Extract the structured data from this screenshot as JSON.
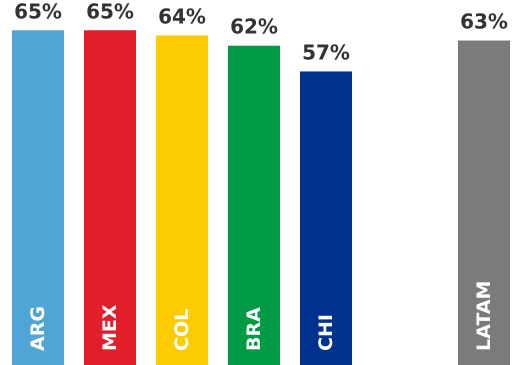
{
  "chart_data": {
    "type": "bar",
    "title": "",
    "xlabel": "",
    "ylabel": "",
    "ylim": [
      0,
      100
    ],
    "unit": "%",
    "categories": [
      "ARG",
      "MEX",
      "COL",
      "BRA",
      "CHI",
      "LATAM"
    ],
    "values": [
      65,
      65,
      64,
      62,
      57,
      63
    ],
    "value_labels": [
      "65%",
      "65%",
      "64%",
      "62%",
      "57%",
      "63%"
    ],
    "colors": [
      "#4fa6d4",
      "#e21e2b",
      "#fccc00",
      "#009a44",
      "#00338d",
      "#7b7b7a"
    ],
    "value_label_color": "#333333",
    "category_label_color": "#ffffff",
    "grid": false,
    "legend": "none"
  }
}
